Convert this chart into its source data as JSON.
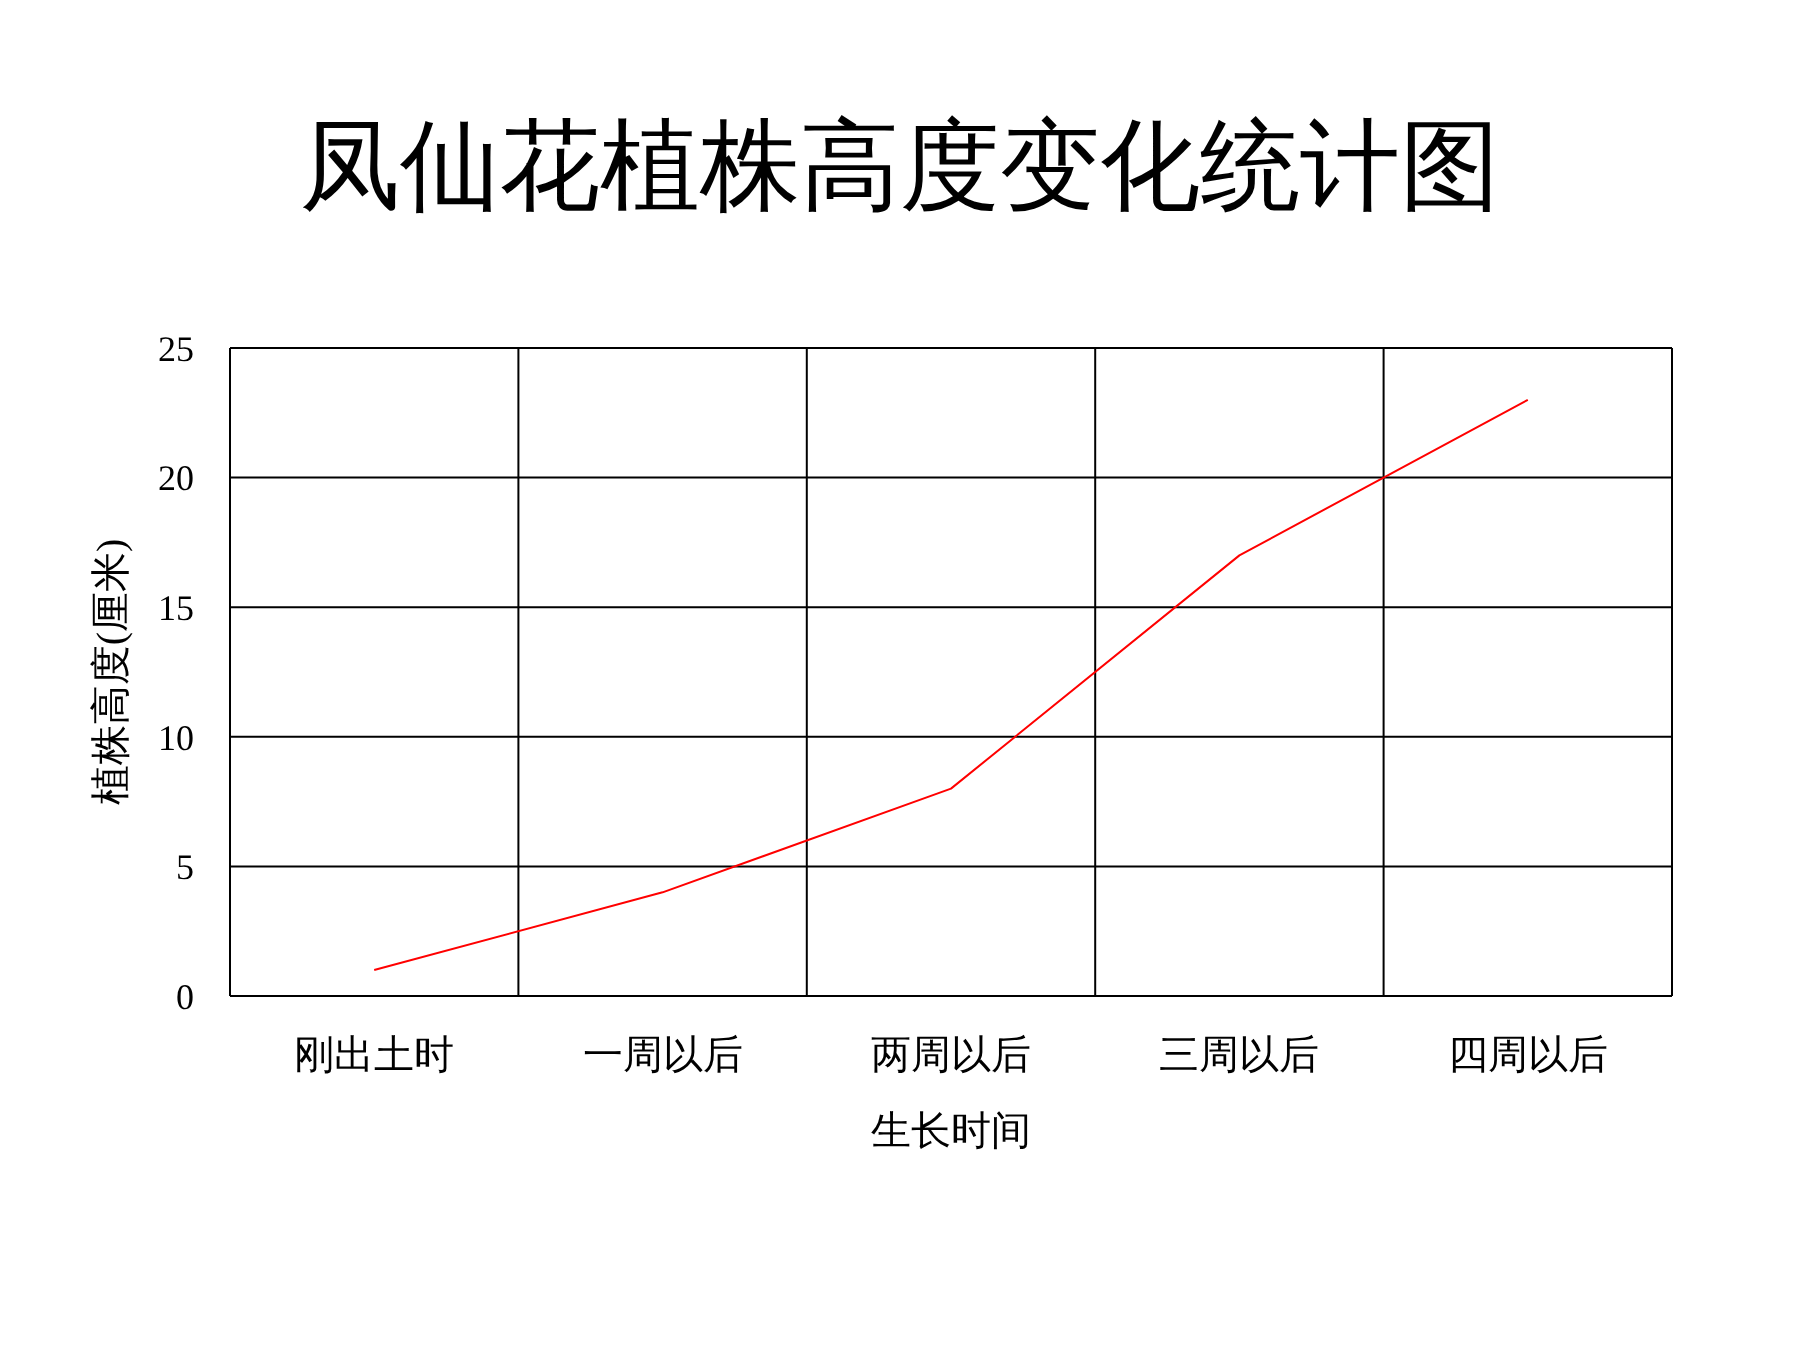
{
  "chart_data": {
    "type": "line",
    "title": "凤仙花植株高度变化统计图",
    "xlabel": "生长时间",
    "ylabel": "植株高度(厘米)",
    "categories": [
      "刚出土时",
      "一周以后",
      "两周以后",
      "三周以后",
      "四周以后"
    ],
    "series": [
      {
        "color": "#ff0000",
        "values": [
          1,
          4,
          8,
          17,
          23
        ]
      }
    ],
    "ylim": [
      0,
      25
    ],
    "yticks": [
      0,
      5,
      10,
      15,
      20,
      25
    ],
    "grid": true,
    "marker": "none",
    "line_style": "solid"
  }
}
